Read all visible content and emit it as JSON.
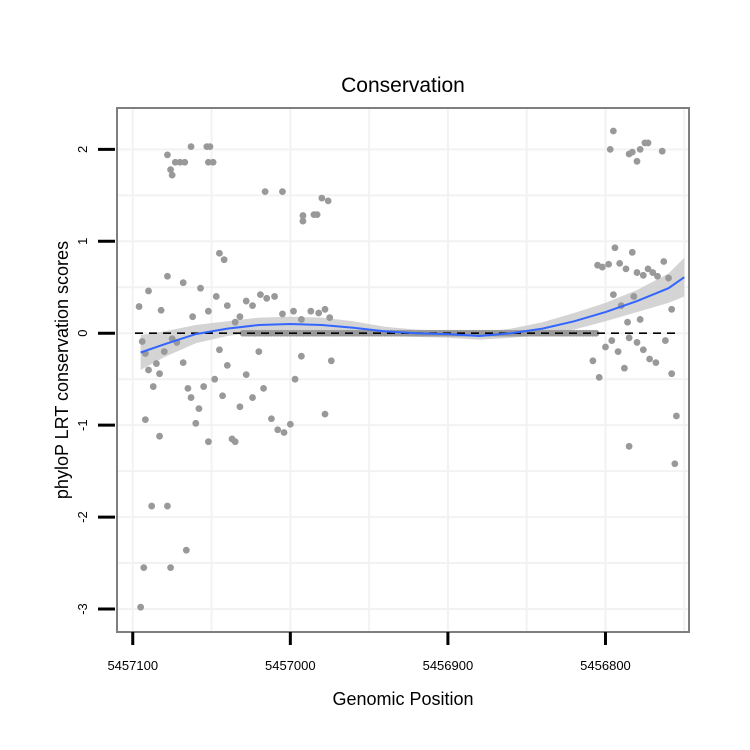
{
  "chart_data": {
    "type": "scatter",
    "title": "Conservation",
    "xlabel": "Genomic Position",
    "ylabel": "phyloP LRT conservation scores",
    "x_reversed": true,
    "xlim": [
      5457110,
      5456747
    ],
    "ylim": [
      -3.25,
      2.45
    ],
    "x_ticks": [
      5457100,
      5457000,
      5456900,
      5456800
    ],
    "x_tick_labels": [
      "5457100",
      "5457000",
      "5456900",
      "5456800"
    ],
    "y_ticks": [
      2,
      1,
      0,
      -1,
      -2,
      -3
    ],
    "y_tick_labels": [
      "2",
      "1",
      "0",
      "-1",
      "-2",
      "-3"
    ],
    "reference_line_y": 0,
    "point_color": "#999999",
    "smooth_color": "#3366ff",
    "band_color": "#cccccc",
    "points": [
      [
        5457095,
        -2.98
      ],
      [
        5457093,
        -2.55
      ],
      [
        5457076,
        -2.55
      ],
      [
        5457066,
        -2.36
      ],
      [
        5457078,
        -1.88
      ],
      [
        5457088,
        -1.88
      ],
      [
        5457078,
        1.94
      ],
      [
        5457076,
        1.78
      ],
      [
        5457075,
        1.72
      ],
      [
        5457073,
        1.86
      ],
      [
        5457070,
        1.86
      ],
      [
        5457067,
        1.86
      ],
      [
        5457063,
        2.03
      ],
      [
        5457053,
        2.03
      ],
      [
        5457051,
        2.03
      ],
      [
        5457052,
        1.86
      ],
      [
        5457049,
        1.86
      ],
      [
        5457016,
        1.54
      ],
      [
        5457005,
        1.54
      ],
      [
        5456992,
        1.28
      ],
      [
        5456992,
        1.22
      ],
      [
        5456985,
        1.29
      ],
      [
        5456983,
        1.29
      ],
      [
        5456980,
        1.47
      ],
      [
        5456976,
        1.44
      ],
      [
        5457096,
        0.29
      ],
      [
        5457090,
        0.46
      ],
      [
        5457082,
        0.25
      ],
      [
        5457078,
        0.62
      ],
      [
        5457068,
        0.55
      ],
      [
        5457062,
        0.18
      ],
      [
        5457057,
        0.49
      ],
      [
        5457052,
        0.24
      ],
      [
        5457047,
        0.4
      ],
      [
        5457045,
        0.87
      ],
      [
        5457042,
        0.8
      ],
      [
        5457040,
        0.3
      ],
      [
        5457035,
        0.12
      ],
      [
        5457032,
        0.18
      ],
      [
        5457028,
        0.35
      ],
      [
        5457024,
        0.3
      ],
      [
        5457019,
        0.42
      ],
      [
        5457015,
        0.38
      ],
      [
        5457010,
        0.4
      ],
      [
        5457005,
        0.21
      ],
      [
        5456998,
        0.24
      ],
      [
        5456993,
        0.15
      ],
      [
        5456987,
        0.24
      ],
      [
        5456982,
        0.22
      ],
      [
        5456978,
        0.26
      ],
      [
        5456975,
        0.17
      ],
      [
        5457094,
        -0.09
      ],
      [
        5457092,
        -0.22
      ],
      [
        5457090,
        -0.4
      ],
      [
        5457087,
        -0.58
      ],
      [
        5457085,
        -0.33
      ],
      [
        5457083,
        -0.44
      ],
      [
        5457080,
        -0.2
      ],
      [
        5457075,
        -0.06
      ],
      [
        5457072,
        -0.1
      ],
      [
        5457068,
        -0.32
      ],
      [
        5457065,
        -0.6
      ],
      [
        5457063,
        -0.7
      ],
      [
        5457058,
        -0.82
      ],
      [
        5457055,
        -0.58
      ],
      [
        5457052,
        -1.18
      ],
      [
        5457048,
        -0.5
      ],
      [
        5457045,
        -0.18
      ],
      [
        5457043,
        -0.68
      ],
      [
        5457040,
        -0.35
      ],
      [
        5457037,
        -1.15
      ],
      [
        5457035,
        -1.18
      ],
      [
        5457032,
        -0.8
      ],
      [
        5457028,
        -0.45
      ],
      [
        5457024,
        -0.7
      ],
      [
        5457020,
        -0.2
      ],
      [
        5457017,
        -0.6
      ],
      [
        5457012,
        -0.93
      ],
      [
        5457008,
        -1.05
      ],
      [
        5457004,
        -1.08
      ],
      [
        5457000,
        -0.99
      ],
      [
        5456997,
        -0.5
      ],
      [
        5456993,
        -0.25
      ],
      [
        5456978,
        -0.88
      ],
      [
        5456974,
        -0.3
      ],
      [
        5457092,
        -0.94
      ],
      [
        5457083,
        -1.12
      ],
      [
        5457060,
        -0.98
      ],
      [
        5456805,
        0.74
      ],
      [
        5456802,
        0.72
      ],
      [
        5456798,
        0.75
      ],
      [
        5456794,
        0.93
      ],
      [
        5456791,
        0.76
      ],
      [
        5456787,
        0.7
      ],
      [
        5456783,
        0.88
      ],
      [
        5456780,
        0.66
      ],
      [
        5456776,
        0.63
      ],
      [
        5456773,
        0.7
      ],
      [
        5456770,
        0.66
      ],
      [
        5456767,
        0.62
      ],
      [
        5456763,
        0.78
      ],
      [
        5456760,
        0.6
      ],
      [
        5456758,
        0.26
      ],
      [
        5456782,
        0.4
      ],
      [
        5456778,
        0.15
      ],
      [
        5456790,
        0.3
      ],
      [
        5456795,
        0.42
      ],
      [
        5456786,
        0.12
      ],
      [
        5456797,
        2.0
      ],
      [
        5456795,
        2.2
      ],
      [
        5456785,
        1.95
      ],
      [
        5456783,
        1.97
      ],
      [
        5456780,
        1.87
      ],
      [
        5456778,
        2.0
      ],
      [
        5456775,
        2.07
      ],
      [
        5456773,
        2.07
      ],
      [
        5456764,
        1.98
      ],
      [
        5456808,
        -0.3
      ],
      [
        5456804,
        -0.48
      ],
      [
        5456800,
        -0.15
      ],
      [
        5456796,
        -0.08
      ],
      [
        5456792,
        -0.2
      ],
      [
        5456788,
        -0.38
      ],
      [
        5456785,
        -0.05
      ],
      [
        5456780,
        -0.1
      ],
      [
        5456776,
        -0.18
      ],
      [
        5456772,
        -0.28
      ],
      [
        5456768,
        -0.32
      ],
      [
        5456762,
        -0.08
      ],
      [
        5456758,
        -0.44
      ],
      [
        5456755,
        -0.9
      ],
      [
        5456756,
        -1.42
      ],
      [
        5456785,
        -1.23
      ]
    ],
    "flat_cluster_ranges": [
      [
        5457030,
        5456850
      ],
      [
        5456850,
        5456805
      ]
    ],
    "smooth_line": {
      "x": [
        5457095,
        5457080,
        5457060,
        5457040,
        5457020,
        5457000,
        5456980,
        5456960,
        5456940,
        5456920,
        5456900,
        5456880,
        5456860,
        5456840,
        5456820,
        5456800,
        5456780,
        5456760,
        5456750
      ],
      "y": [
        -0.21,
        -0.12,
        -0.01,
        0.05,
        0.09,
        0.1,
        0.09,
        0.06,
        0.02,
        0.0,
        -0.01,
        -0.03,
        0.0,
        0.05,
        0.13,
        0.23,
        0.35,
        0.49,
        0.61
      ],
      "band_halfwidth": [
        0.19,
        0.14,
        0.1,
        0.08,
        0.08,
        0.08,
        0.08,
        0.07,
        0.05,
        0.04,
        0.04,
        0.04,
        0.05,
        0.07,
        0.09,
        0.1,
        0.12,
        0.16,
        0.21
      ]
    }
  }
}
